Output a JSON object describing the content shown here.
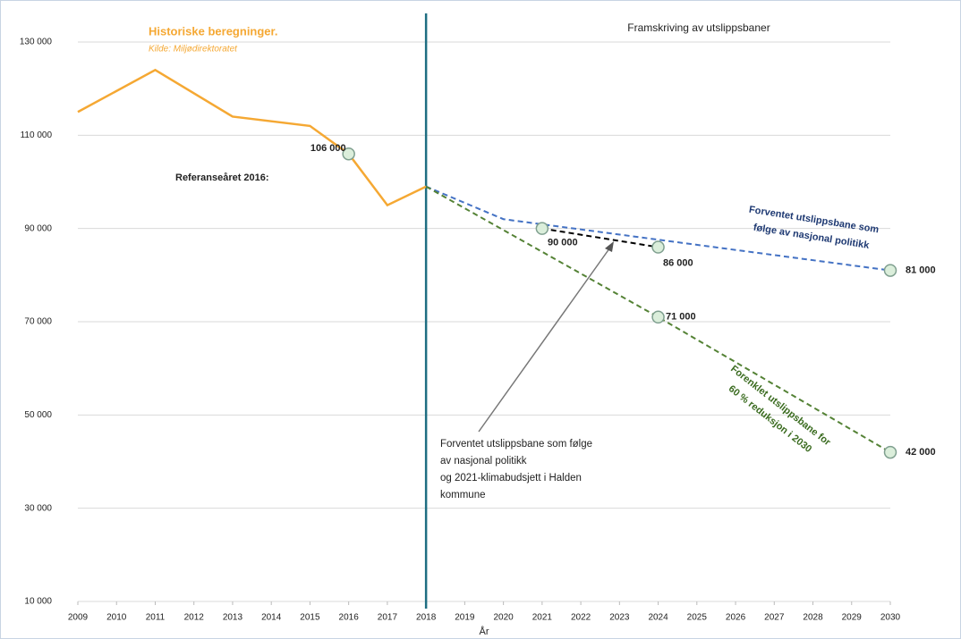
{
  "chart_data": {
    "type": "line",
    "annotations": {
      "historic_title": "Historiske beregninger.",
      "historic_source": "Kilde: Miljødirektoratet",
      "projection_title": "Framskriving av utslippsbaner",
      "reference": "Referanseåret 2016:",
      "blue_note": [
        "Forventet utslippsbane som",
        "følge av nasjonal politikk"
      ],
      "green_note": [
        "Forenklet utslippsbane for",
        "60 % reduksjon i 2030"
      ],
      "black_note": [
        "Forventet utslippsbane som følge",
        "av nasjonal politikk",
        "og 2021-klimabudsjett i Halden",
        "kommune"
      ]
    },
    "x_label": "År",
    "vline": 2018,
    "vline_color": "#1f6e82",
    "series": [
      {
        "color": "#f5a833",
        "dashed": false,
        "x": [
          2009,
          2011,
          2013,
          2015,
          2016,
          2017,
          2018
        ],
        "values": [
          115000,
          124000,
          114000,
          112000,
          106000,
          95000,
          99000
        ]
      },
      {
        "color": "#4472c4",
        "dashed": true,
        "x": [
          2018,
          2020,
          2030
        ],
        "values": [
          99000,
          92000,
          81000
        ]
      },
      {
        "color": "#000000",
        "dashed": true,
        "x": [
          2021,
          2024
        ],
        "values": [
          90000,
          86000
        ]
      },
      {
        "color": "#548235",
        "dashed": true,
        "x": [
          2018,
          2024,
          2030
        ],
        "values": [
          99000,
          71000,
          42000
        ]
      }
    ],
    "points": {
      "color": "#dbeedb",
      "x": [
        2016,
        2021,
        2024,
        2024,
        2030,
        2030
      ],
      "values": [
        106000,
        90000,
        86000,
        71000,
        81000,
        42000
      ],
      "value_labels": [
        "106 000",
        "90 000",
        "86 000",
        "71 000",
        "81 000",
        "42 000"
      ]
    },
    "xlim": [
      2009,
      2030
    ],
    "xticks": [
      2009,
      2010,
      2011,
      2012,
      2013,
      2014,
      2015,
      2016,
      2017,
      2018,
      2019,
      2020,
      2021,
      2022,
      2023,
      2024,
      2025,
      2026,
      2027,
      2028,
      2029,
      2030
    ],
    "ylim": [
      10000,
      130000
    ],
    "yticks": [
      {
        "value": 10000,
        "label": "10 000"
      },
      {
        "value": 30000,
        "label": "30 000"
      },
      {
        "value": 50000,
        "label": "50 000"
      },
      {
        "value": 70000,
        "label": "70 000"
      },
      {
        "value": 90000,
        "label": "90 000"
      },
      {
        "value": 110000,
        "label": "110 000"
      },
      {
        "value": 130000,
        "label": "130 000"
      }
    ],
    "grid": true
  }
}
